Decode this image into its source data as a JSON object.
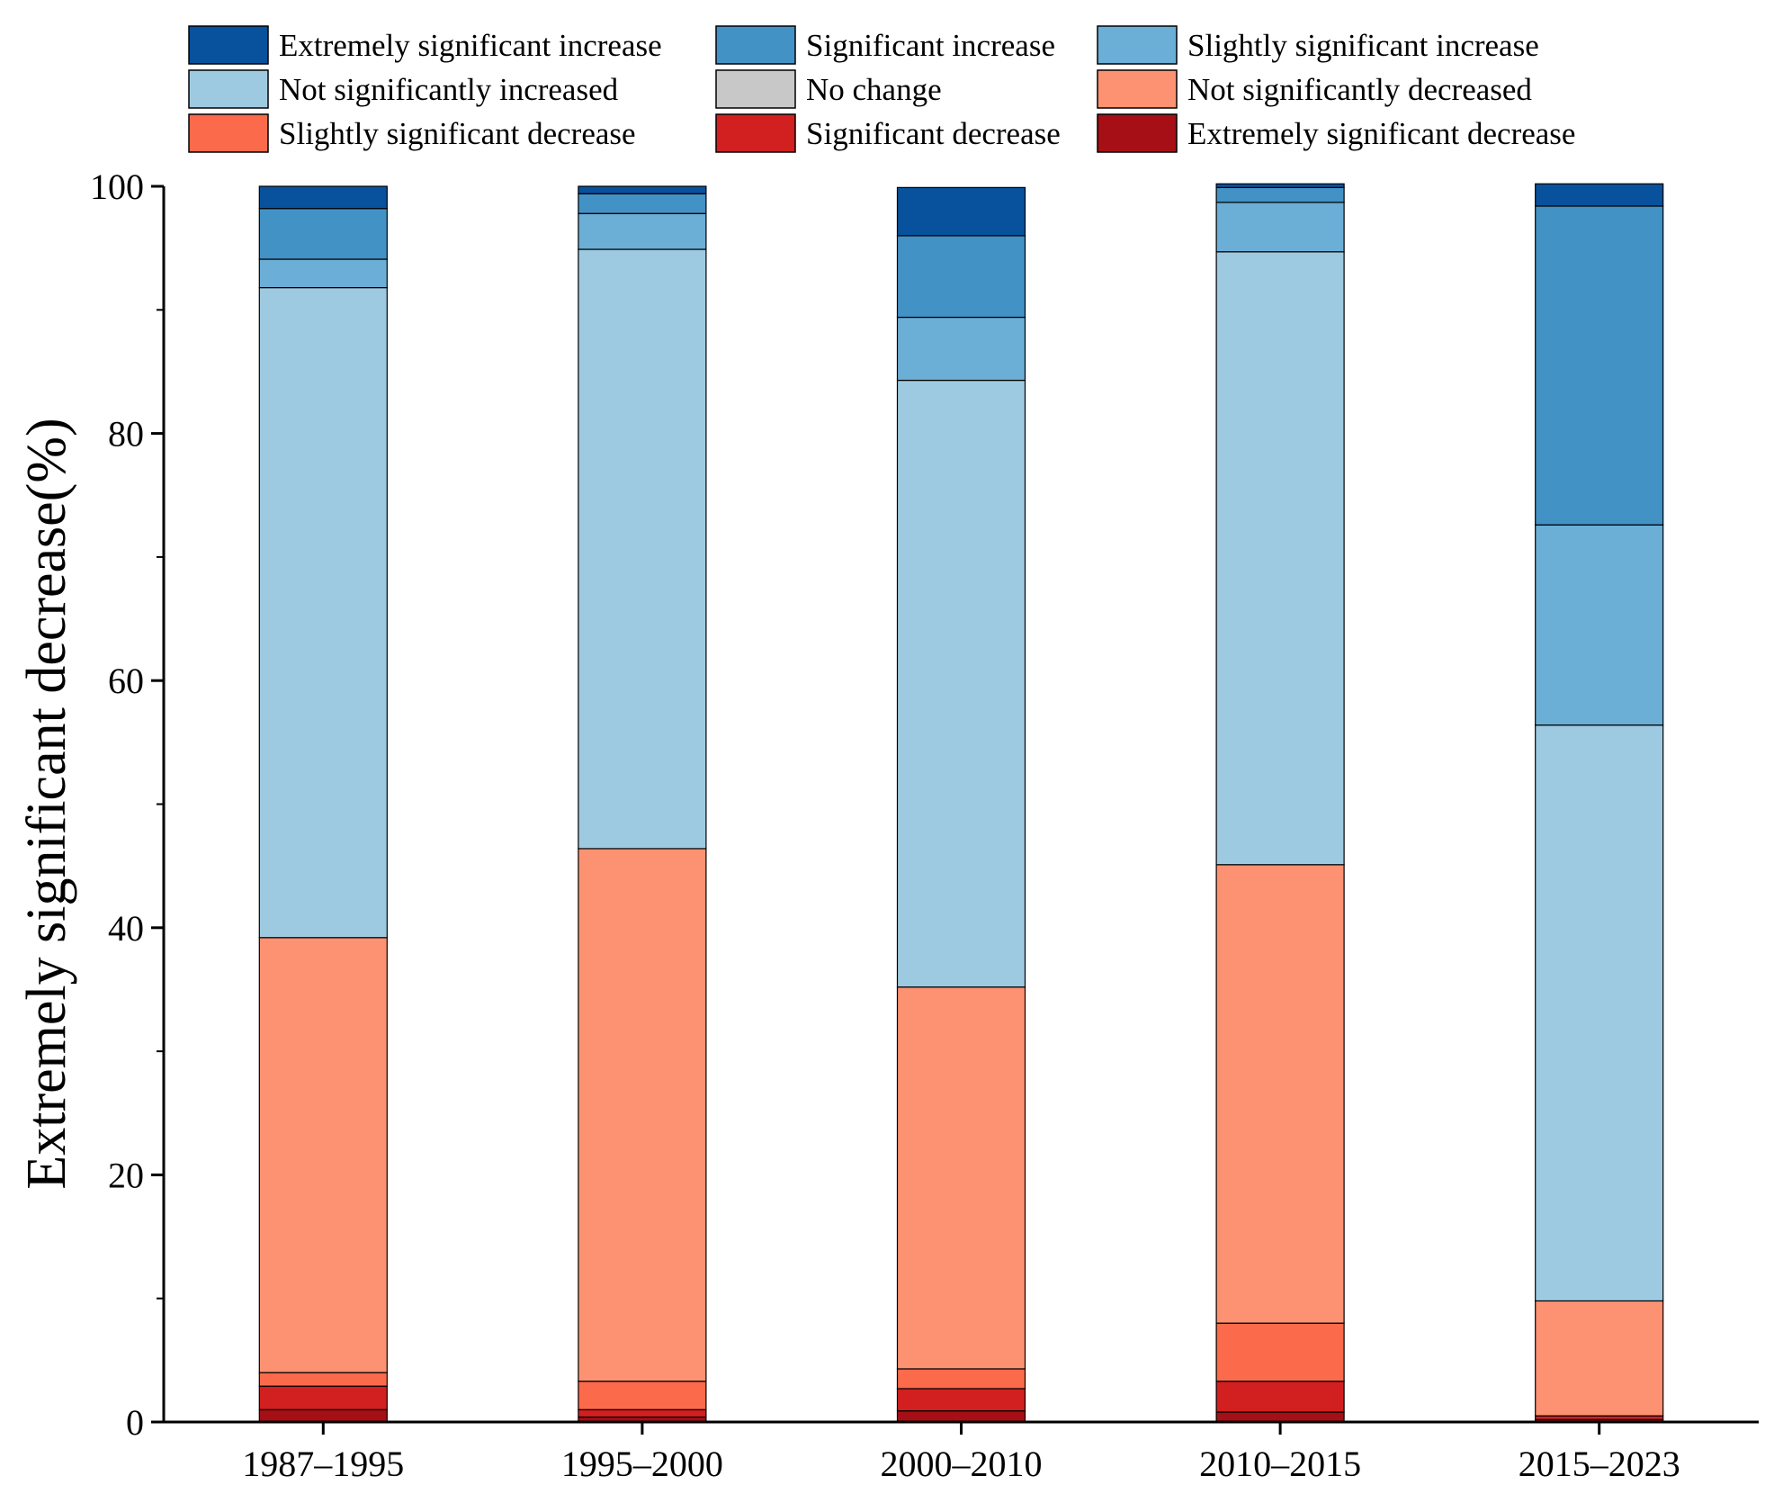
{
  "chart_data": {
    "type": "bar",
    "stacked": true,
    "title": "",
    "xlabel": "",
    "ylabel": "Extremely significant decrease(%)",
    "ylim": [
      0,
      100
    ],
    "yticks": [
      0,
      20,
      40,
      60,
      80,
      100
    ],
    "ytick_labels": [
      "0",
      "20",
      "40",
      "60",
      "80",
      "100"
    ],
    "categories": [
      "1987–1995",
      "1995–2000",
      "2000–2010",
      "2010–2015",
      "2015–2023"
    ],
    "legend_position": "top",
    "series": [
      {
        "name": "Extremely significant decrease",
        "color": "#a50f15",
        "values": [
          1.0,
          0.4,
          0.9,
          0.8,
          0.2
        ]
      },
      {
        "name": "Significant decrease",
        "color": "#d21f1f",
        "values": [
          1.9,
          0.6,
          1.8,
          2.5,
          0.3
        ]
      },
      {
        "name": "Slightly significant decrease",
        "color": "#fb6a4a",
        "values": [
          1.1,
          2.3,
          1.6,
          4.7,
          0.0
        ]
      },
      {
        "name": "Not significantly decreased",
        "color": "#fc9272",
        "values": [
          35.2,
          43.1,
          30.9,
          37.1,
          9.3
        ]
      },
      {
        "name": "No change",
        "color": "#c8c8c8",
        "values": [
          0.0,
          0.0,
          0.0,
          0.0,
          0.0
        ]
      },
      {
        "name": "Not significantly increased",
        "color": "#9ecae1",
        "values": [
          52.6,
          48.5,
          49.1,
          49.6,
          46.6
        ]
      },
      {
        "name": "Slightly significant increase",
        "color": "#6baed6",
        "values": [
          2.3,
          2.9,
          5.1,
          4.0,
          16.2
        ]
      },
      {
        "name": "Significant increase",
        "color": "#4292c6",
        "values": [
          4.1,
          1.6,
          6.6,
          1.2,
          25.8
        ]
      },
      {
        "name": "Extremely significant increase",
        "color": "#08519c",
        "values": [
          1.8,
          0.6,
          3.9,
          0.3,
          1.8
        ]
      }
    ],
    "legend_order": [
      "Extremely significant increase",
      "Significant increase",
      "Slightly significant increase",
      "Not significantly increased",
      "No change",
      "Not significantly decreased",
      "Slightly significant decrease",
      "Significant decrease",
      "Extremely significant decrease"
    ]
  }
}
